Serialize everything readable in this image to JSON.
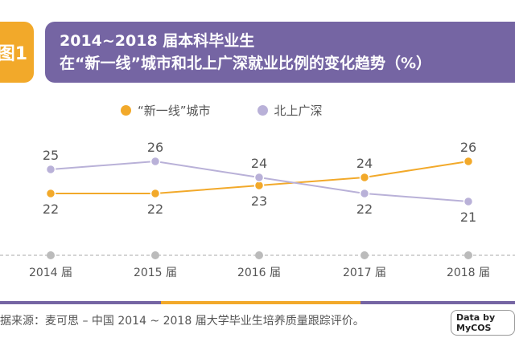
{
  "header": {
    "badge": "图1",
    "title_line1": "2014~2018 届本科毕业生",
    "title_line2": "在“新一线”城市和北上广深就业比例的变化趋势（%）"
  },
  "colors": {
    "orange": "#f2a92a",
    "purple": "#b9b1d8",
    "title_bg": "#7565a3"
  },
  "chart_data": {
    "type": "line",
    "title": "2014~2018 届本科毕业生 在“新一线”城市和北上广深就业比例的变化趋势（%）",
    "categories": [
      "2014 届",
      "2015 届",
      "2016 届",
      "2017 届",
      "2018 届"
    ],
    "series": [
      {
        "name": "“新一线”城市",
        "values": [
          22,
          22,
          23,
          24,
          26
        ],
        "color": "#f2a92a"
      },
      {
        "name": "北上广深",
        "values": [
          25,
          26,
          24,
          22,
          21
        ],
        "color": "#b9b1d8"
      }
    ],
    "legend": "top-center",
    "grid": false
  },
  "footer": {
    "source": "据来源：麦可思 – 中国 2014 ~ 2018 届大学毕业生培养质量跟踪评价。",
    "logo": "Data by MyCOS"
  }
}
